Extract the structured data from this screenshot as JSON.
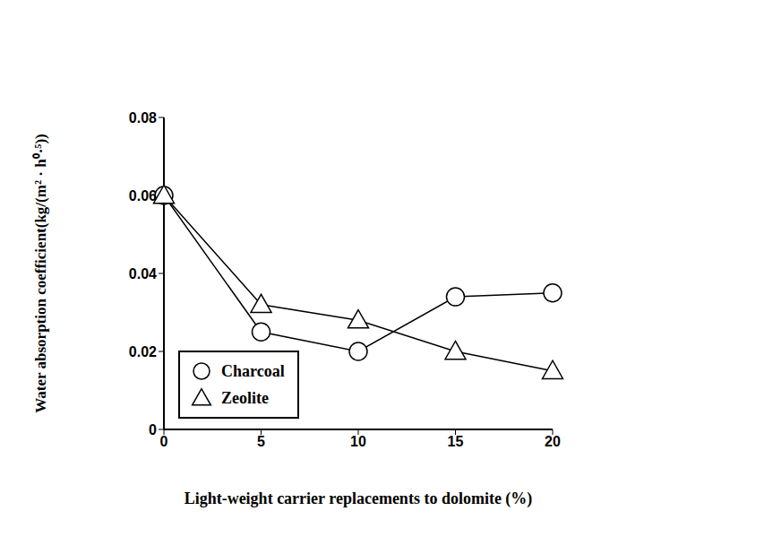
{
  "chart_data": {
    "type": "line",
    "xlabel": "Light-weight carrier replacements to dolomite (%)",
    "ylabel": "Water absorption coefficient(kg/(m² · h⁰·⁵))",
    "x": [
      0,
      5,
      10,
      15,
      20
    ],
    "series": [
      {
        "name": "Charcoal",
        "color": "#000000",
        "marker": "circle",
        "values": [
          0.06,
          0.025,
          0.02,
          0.034,
          0.035
        ]
      },
      {
        "name": "Zeolite",
        "color": "#000000",
        "marker": "triangle",
        "values": [
          0.06,
          0.032,
          0.028,
          0.02,
          0.015
        ]
      }
    ],
    "xlim": [
      0,
      20
    ],
    "xticks": [
      0,
      5,
      10,
      15,
      20
    ],
    "ylim": [
      0,
      0.08
    ],
    "yticks": [
      0,
      0.02,
      0.04,
      0.06,
      0.08
    ],
    "grid": false,
    "legend": "lower left"
  }
}
